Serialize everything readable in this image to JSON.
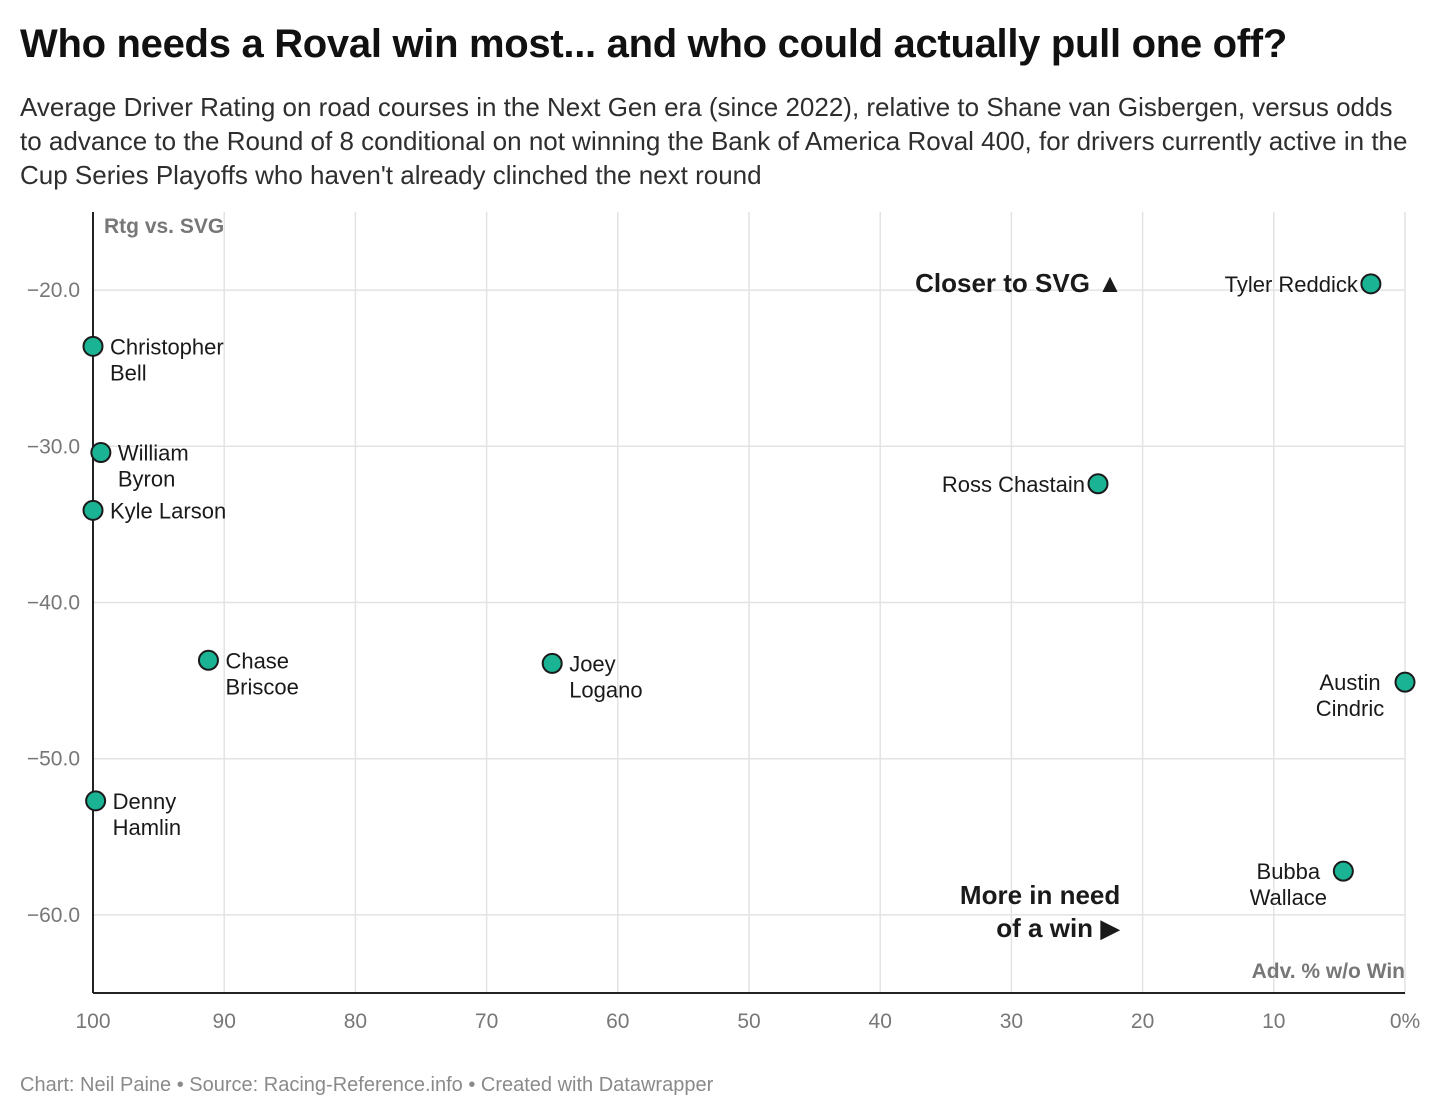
{
  "title": "Who needs a Roval win most... and who could actually pull one off?",
  "subtitle": "Average Driver Rating on road courses in the Next Gen era (since 2022), relative to Shane van Gisbergen, versus odds to advance to the Round of 8 conditional on not winning the Bank of America Roval 400, for drivers currently active in the Cup Series Playoffs who haven't already clinched the next round",
  "footer": "Chart: Neil Paine • Source: Racing-Reference.info • Created with Datawrapper",
  "colors": {
    "point": "#1ab394",
    "grid": "#e3e3e3",
    "axis": "#222222",
    "tick_label": "#777777",
    "arrow_box": "#f5a623"
  },
  "chart_data": {
    "type": "scatter",
    "xlabel": "Adv. % w/o Win",
    "ylabel": "Rtg vs. SVG",
    "xlim": [
      100,
      0
    ],
    "ylim": [
      -65,
      -15
    ],
    "x_reversed": true,
    "x_ticks": [
      100,
      90,
      80,
      70,
      60,
      50,
      40,
      30,
      20,
      10,
      0
    ],
    "x_tick_labels": [
      "100",
      "90",
      "80",
      "70",
      "60",
      "50",
      "40",
      "30",
      "20",
      "10",
      "0%"
    ],
    "y_ticks": [
      -20,
      -30,
      -40,
      -50,
      -60
    ],
    "y_tick_labels": [
      "−20.0",
      "−30.0",
      "−40.0",
      "−50.0",
      "−60.0"
    ],
    "grid": true,
    "points": [
      {
        "label": [
          "Tyler Reddick"
        ],
        "x": 2.6,
        "y": -19.6,
        "label_side": "left"
      },
      {
        "label": [
          "Christopher",
          "Bell"
        ],
        "x": 100,
        "y": -23.6,
        "label_side": "right"
      },
      {
        "label": [
          "William",
          "Byron"
        ],
        "x": 99.4,
        "y": -30.4,
        "label_side": "right"
      },
      {
        "label": [
          "Kyle Larson"
        ],
        "x": 100,
        "y": -34.1,
        "label_side": "right"
      },
      {
        "label": [
          "Ross Chastain"
        ],
        "x": 23.4,
        "y": -32.4,
        "label_side": "left"
      },
      {
        "label": [
          "Chase",
          "Briscoe"
        ],
        "x": 91.2,
        "y": -43.7,
        "label_side": "right"
      },
      {
        "label": [
          "Joey",
          "Logano"
        ],
        "x": 65.0,
        "y": -43.9,
        "label_side": "right"
      },
      {
        "label": [
          "Austin",
          "Cindric"
        ],
        "x": 0,
        "y": -45.1,
        "label_side": "left"
      },
      {
        "label": [
          "Denny",
          "Hamlin"
        ],
        "x": 99.8,
        "y": -52.7,
        "label_side": "right"
      },
      {
        "label": [
          "Bubba",
          "Wallace"
        ],
        "x": 4.7,
        "y": -57.2,
        "label_side": "left"
      }
    ],
    "annotations": [
      {
        "text": [
          "Closer to SVG ▲"
        ],
        "x": 21.5,
        "y": -19.6,
        "align": "end"
      },
      {
        "text": [
          "More in need",
          "of a win ▶"
        ],
        "x": 21.7,
        "y": -58.8,
        "align": "end"
      }
    ]
  }
}
